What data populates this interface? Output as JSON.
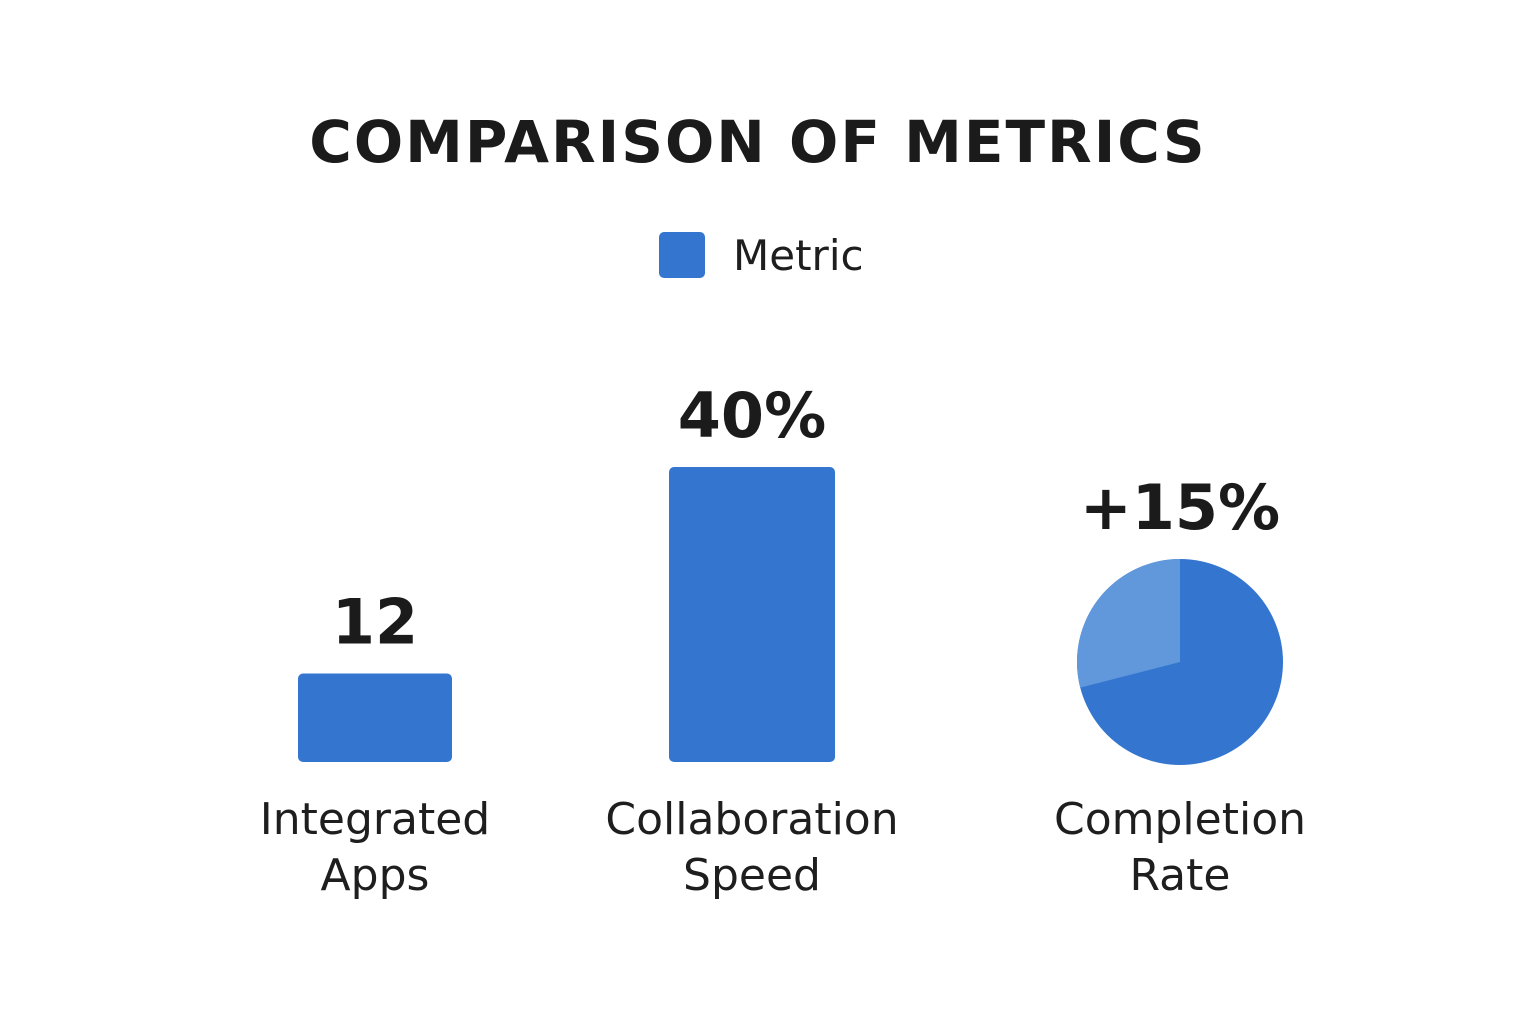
{
  "chart_data": {
    "type": "bar",
    "title": "COMPARISON OF METRICS",
    "legend": {
      "position": "top-center",
      "entries": [
        "Metric"
      ]
    },
    "grid": false,
    "categories": [
      [
        "Integrated",
        "Apps"
      ],
      [
        "Collaboration",
        "Speed"
      ],
      [
        "Completion",
        "Rate"
      ]
    ],
    "series": [
      {
        "name": "Metric",
        "values": [
          12,
          40,
          15
        ],
        "data_labels": [
          "12",
          "40%",
          "+15%"
        ]
      }
    ],
    "marks": [
      "bar",
      "bar",
      "pie"
    ],
    "pie_highlight_share": 0.29,
    "colors": {
      "bar": "#3476cf",
      "pie_main": "#3476cf",
      "pie_slice": "#6198dc"
    }
  }
}
